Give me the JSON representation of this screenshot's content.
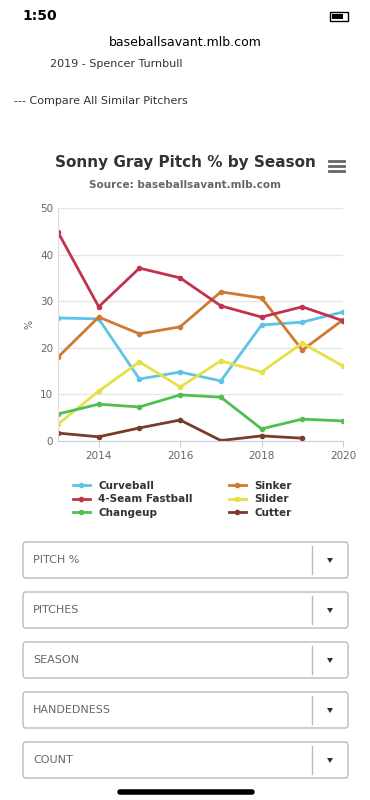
{
  "page": {
    "status_time": "1:50",
    "url": "baseballsavant.mlb.com",
    "similar_pitcher": "2019 - Spencer Turnbull",
    "compare_link": "--- Compare All Similar Pitchers",
    "dropdowns": [
      "PITCH %",
      "PITCHES",
      "SEASON",
      "HANDEDNESS",
      "COUNT"
    ]
  },
  "chart_data": {
    "type": "line",
    "title": "Sonny Gray Pitch % by Season",
    "subtitle": "Source: baseballsavant.mlb.com",
    "y_label": "%",
    "x": [
      2013,
      2014,
      2015,
      2016,
      2017,
      2018,
      2019,
      2020
    ],
    "xlim": [
      2013,
      2020
    ],
    "xticks": [
      2014,
      2016,
      2018,
      2020
    ],
    "ylim": [
      0,
      50
    ],
    "yticks": [
      0,
      10,
      20,
      30,
      40,
      50
    ],
    "grid": true,
    "legend": "bottom",
    "marker": "o",
    "series": [
      {
        "name": "Curveball",
        "color": "#5ec4e6",
        "values": [
          26.4,
          26.2,
          13.3,
          14.8,
          12.9,
          24.9,
          25.5,
          27.7
        ]
      },
      {
        "name": "Sinker",
        "color": "#cf7a33",
        "values": [
          18.0,
          26.6,
          23.0,
          24.5,
          32.0,
          30.7,
          19.5,
          26.0
        ]
      },
      {
        "name": "4-Seam Fastball",
        "color": "#c2324f",
        "values": [
          44.8,
          28.8,
          37.1,
          35.0,
          29.0,
          26.6,
          28.8,
          25.8
        ]
      },
      {
        "name": "Slider",
        "color": "#e6e044",
        "values": [
          3.6,
          10.7,
          17.0,
          11.6,
          17.2,
          14.8,
          21.0,
          16.1
        ]
      },
      {
        "name": "Changeup",
        "color": "#4fbf4f",
        "values": [
          5.8,
          7.9,
          7.3,
          9.9,
          9.4,
          2.6,
          4.7,
          4.3
        ]
      },
      {
        "name": "Cutter",
        "color": "#7b3b2b",
        "values": [
          1.7,
          0.9,
          2.8,
          4.5,
          0.1,
          1.1,
          0.6,
          null
        ]
      }
    ]
  }
}
